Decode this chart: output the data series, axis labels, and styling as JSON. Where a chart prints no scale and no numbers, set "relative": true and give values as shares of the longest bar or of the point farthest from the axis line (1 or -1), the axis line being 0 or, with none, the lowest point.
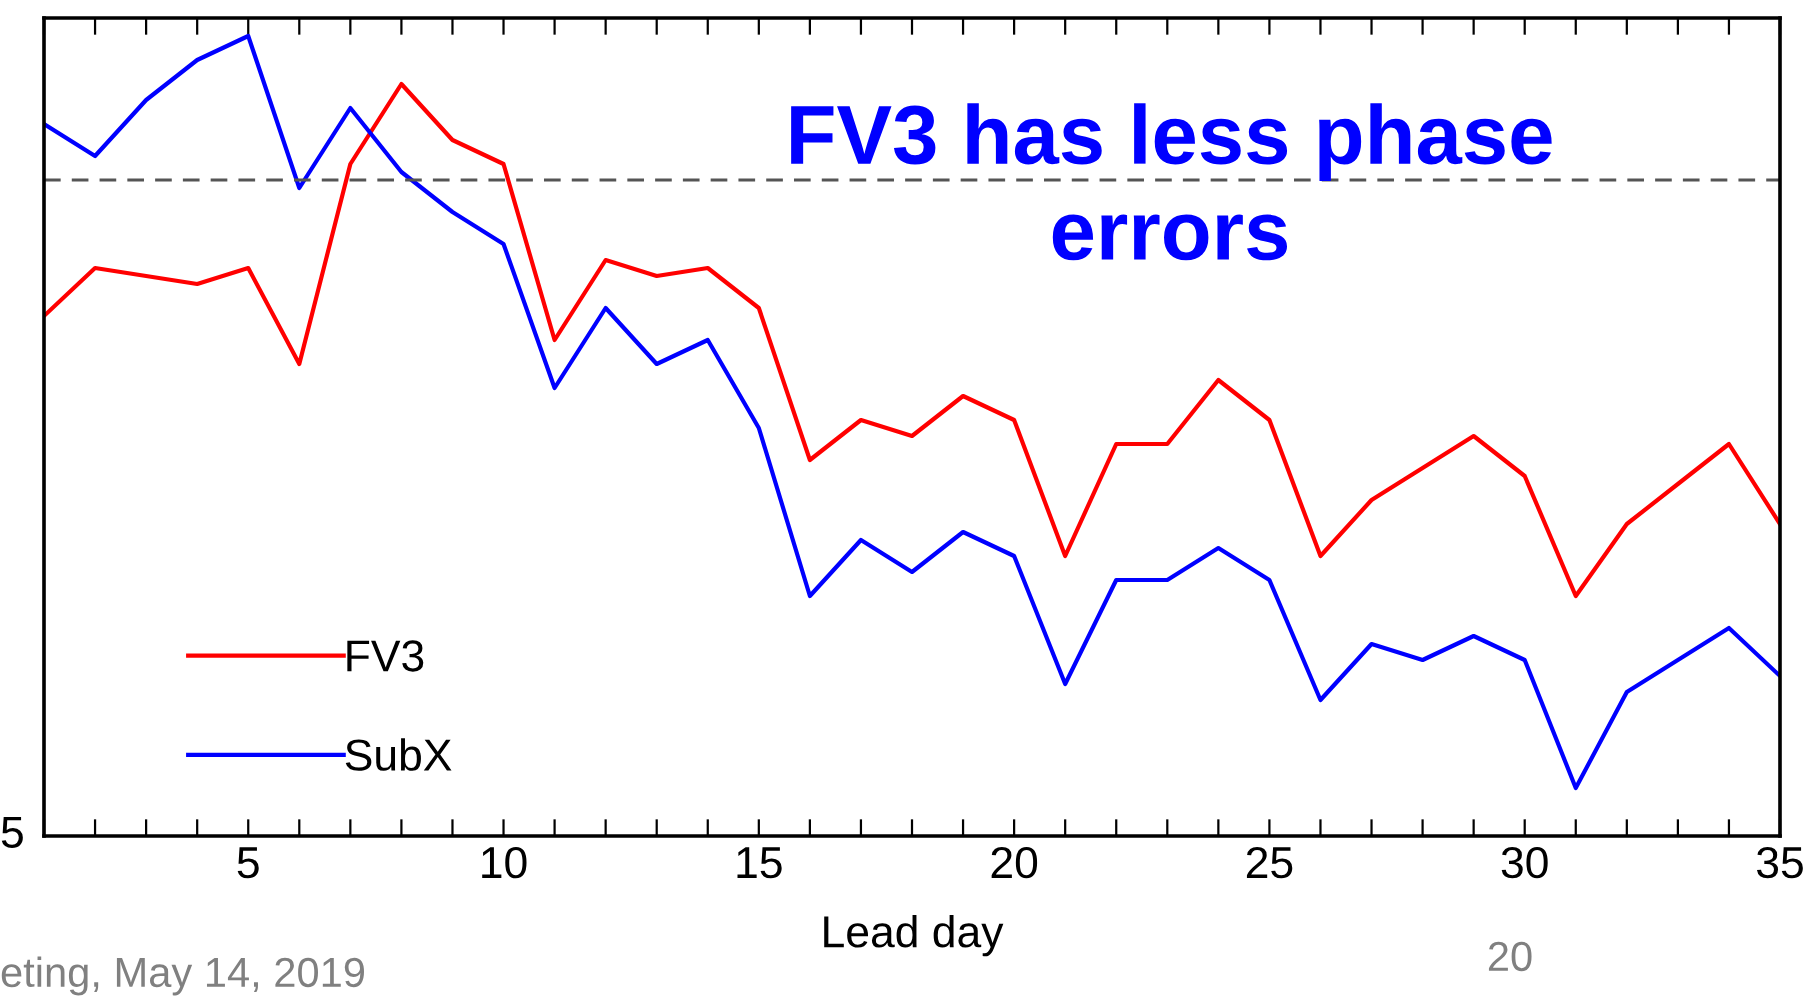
{
  "chart_data": {
    "type": "line",
    "relative": true,
    "xlabel": "Lead day",
    "x": [
      1,
      2,
      3,
      4,
      5,
      6,
      7,
      8,
      9,
      10,
      11,
      12,
      13,
      14,
      15,
      16,
      17,
      18,
      19,
      20,
      21,
      22,
      23,
      24,
      25,
      26,
      27,
      28,
      29,
      30,
      31,
      32,
      33,
      34,
      35
    ],
    "xlim": [
      1,
      35
    ],
    "xticks": [
      {
        "value": 1,
        "label": null
      },
      {
        "value": 2,
        "label": null
      },
      {
        "value": 3,
        "label": null
      },
      {
        "value": 4,
        "label": null
      },
      5,
      {
        "value": 6,
        "label": null
      },
      {
        "value": 7,
        "label": null
      },
      {
        "value": 8,
        "label": null
      },
      {
        "value": 9,
        "label": null
      },
      10,
      {
        "value": 11,
        "label": null
      },
      {
        "value": 12,
        "label": null
      },
      {
        "value": 13,
        "label": null
      },
      {
        "value": 14,
        "label": null
      },
      15,
      {
        "value": 16,
        "label": null
      },
      {
        "value": 17,
        "label": null
      },
      {
        "value": 18,
        "label": null
      },
      {
        "value": 19,
        "label": null
      },
      20,
      {
        "value": 21,
        "label": null
      },
      {
        "value": 22,
        "label": null
      },
      {
        "value": 23,
        "label": null
      },
      {
        "value": 24,
        "label": null
      },
      25,
      {
        "value": 26,
        "label": null
      },
      {
        "value": 27,
        "label": null
      },
      {
        "value": 28,
        "label": null
      },
      {
        "value": 29,
        "label": null
      },
      30,
      {
        "value": 31,
        "label": null
      },
      {
        "value": 32,
        "label": null
      },
      {
        "value": 33,
        "label": null
      },
      {
        "value": 34,
        "label": null
      },
      35
    ],
    "series": [
      {
        "name": "FV3",
        "color": "#ff0000",
        "values": [
          0.65,
          0.71,
          0.7,
          0.69,
          0.71,
          0.59,
          0.84,
          0.94,
          0.87,
          0.84,
          0.62,
          0.72,
          0.7,
          0.71,
          0.66,
          0.47,
          0.52,
          0.5,
          0.55,
          0.52,
          0.35,
          0.49,
          0.49,
          0.57,
          0.52,
          0.35,
          0.42,
          0.46,
          0.5,
          0.45,
          0.3,
          0.39,
          0.44,
          0.49,
          0.39
        ]
      },
      {
        "name": "SubX",
        "color": "#0000ff",
        "values": [
          0.89,
          0.85,
          0.92,
          0.97,
          1.0,
          0.81,
          0.91,
          0.83,
          0.78,
          0.74,
          0.56,
          0.66,
          0.59,
          0.62,
          0.51,
          0.3,
          0.37,
          0.33,
          0.38,
          0.35,
          0.19,
          0.32,
          0.32,
          0.36,
          0.32,
          0.17,
          0.24,
          0.22,
          0.25,
          0.22,
          0.06,
          0.18,
          0.22,
          0.26,
          0.2
        ]
      }
    ],
    "ref_lines": [
      {
        "axis": "y",
        "value": 0.82,
        "color": "#555555",
        "line_style": "dashed"
      }
    ],
    "legend": "bottom left",
    "line_style": "solid",
    "marker": "none",
    "grid": false,
    "annotations": [
      "FV3 has less phase\nerrors",
      "eting, May 14, 2019",
      "20",
      "5"
    ]
  }
}
